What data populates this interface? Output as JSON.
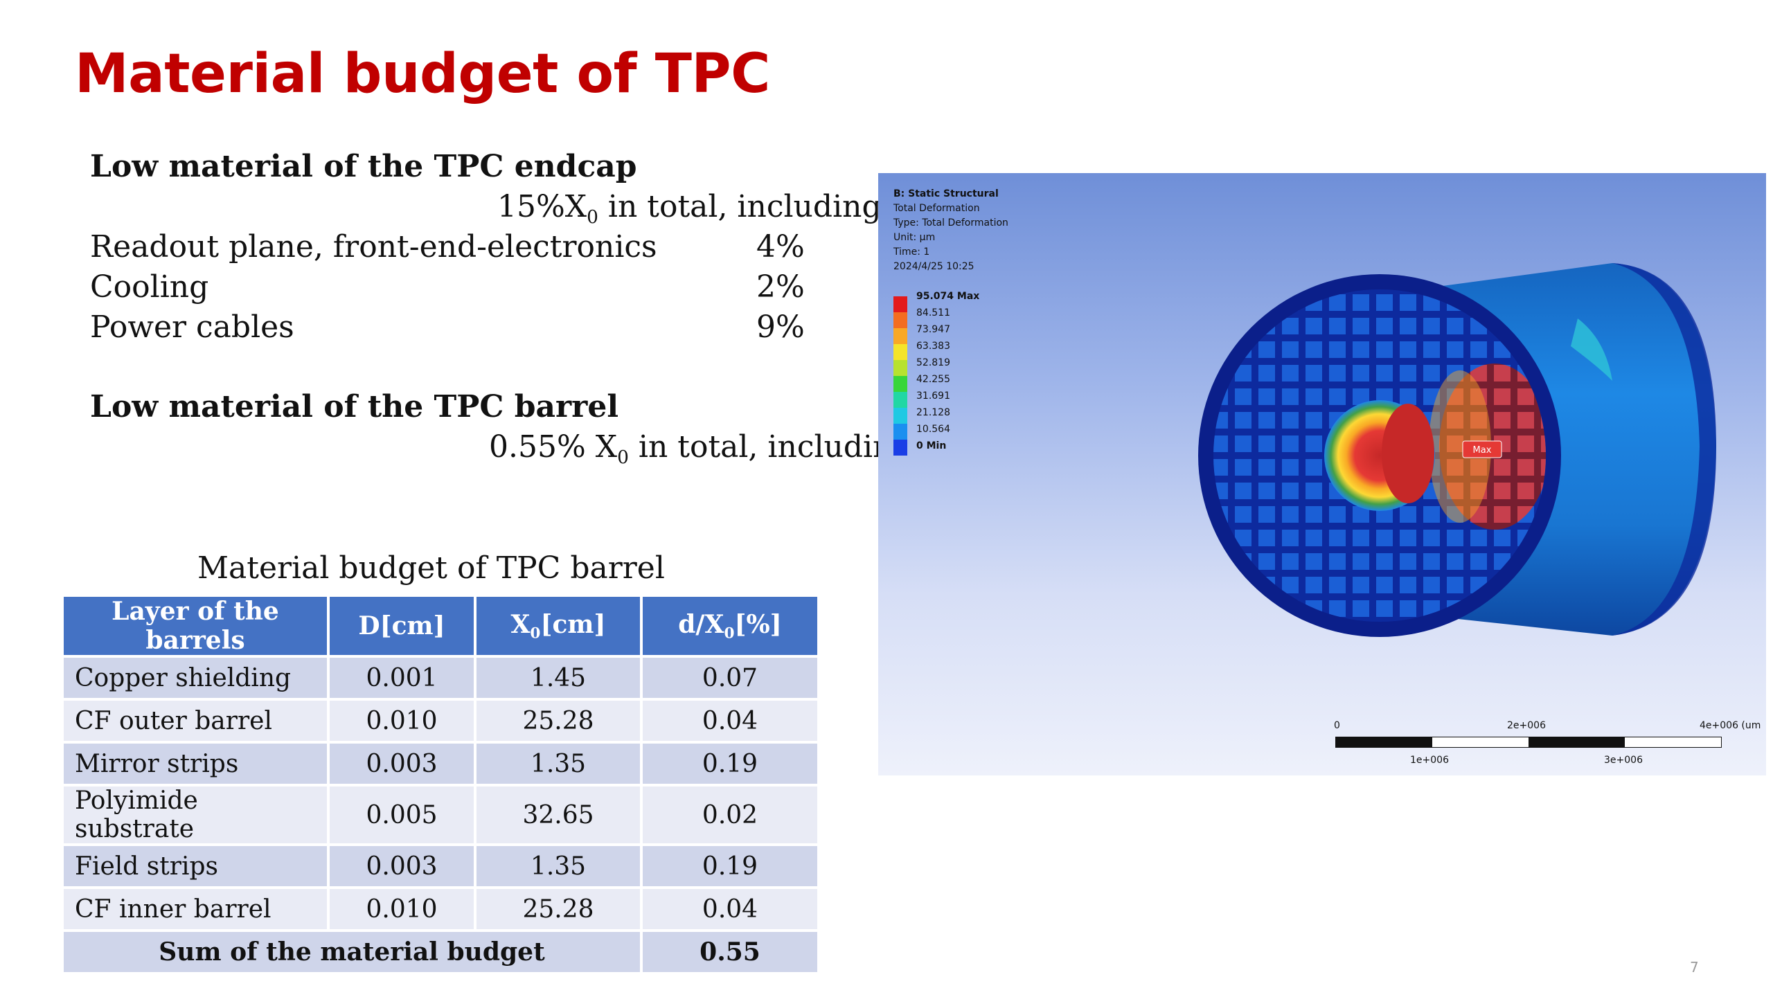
{
  "slide": {
    "title": "Material budget of TPC",
    "page_number": "7"
  },
  "endcap": {
    "heading": "Low material of the TPC endcap",
    "total_prefix": "15%X",
    "total_sub": "0",
    "total_suffix": " in total, including",
    "items": [
      {
        "label": "Readout plane, front-end-electronics",
        "value": "4%"
      },
      {
        "label": "Cooling",
        "value": "2%"
      },
      {
        "label": "Power cables",
        "value": "9%"
      }
    ]
  },
  "barrel": {
    "heading": "Low material of the TPC barrel",
    "total_prefix": "0.55% X",
    "total_sub": "0",
    "total_suffix": " in total, including"
  },
  "table": {
    "caption": "Material budget of TPC barrel",
    "headers": {
      "layer": "Layer of the barrels",
      "d": "D[cm]",
      "x0_main": "X",
      "x0_sub": "0",
      "x0_unit": "[cm]",
      "dx0_main": "d/X",
      "dx0_sub": "0",
      "dx0_unit": "[%]"
    },
    "rows": [
      {
        "layer": "Copper shielding",
        "d": "0.001",
        "x0": "1.45",
        "dx0": "0.07"
      },
      {
        "layer": "CF outer barrel",
        "d": "0.010",
        "x0": "25.28",
        "dx0": "0.04"
      },
      {
        "layer": "Mirror strips",
        "d": "0.003",
        "x0": "1.35",
        "dx0": "0.19"
      },
      {
        "layer": "Polyimide substrate",
        "d": "0.005",
        "x0": "32.65",
        "dx0": "0.02"
      },
      {
        "layer": "Field strips",
        "d": "0.003",
        "x0": "1.35",
        "dx0": "0.19"
      },
      {
        "layer": "CF inner barrel",
        "d": "0.010",
        "x0": "25.28",
        "dx0": "0.04"
      }
    ],
    "sum_label": "Sum of the material budget",
    "sum_value": "0.55"
  },
  "simulation": {
    "header_lines": [
      "B: Static Structural",
      "Total Deformation",
      "Type: Total Deformation",
      "Unit: µm",
      "Time: 1",
      "2024/4/25 10:25"
    ],
    "legend": [
      {
        "label": "95.074 Max",
        "color": "#e31a1c"
      },
      {
        "label": "84.511",
        "color": "#f46d20"
      },
      {
        "label": "73.947",
        "color": "#f9a825"
      },
      {
        "label": "63.383",
        "color": "#f5e42a"
      },
      {
        "label": "52.819",
        "color": "#b7e22f"
      },
      {
        "label": "42.255",
        "color": "#38d63a"
      },
      {
        "label": "31.691",
        "color": "#21d7a4"
      },
      {
        "label": "21.128",
        "color": "#1fc9e3"
      },
      {
        "label": "10.564",
        "color": "#1a8ff0"
      },
      {
        "label": "0 Min",
        "color": "#1a3ee6"
      }
    ],
    "max_tag": "Max",
    "scale_top": [
      "0",
      "2e+006",
      "4e+006 (um"
    ],
    "scale_bottom": [
      "1e+006",
      "3e+006"
    ]
  }
}
